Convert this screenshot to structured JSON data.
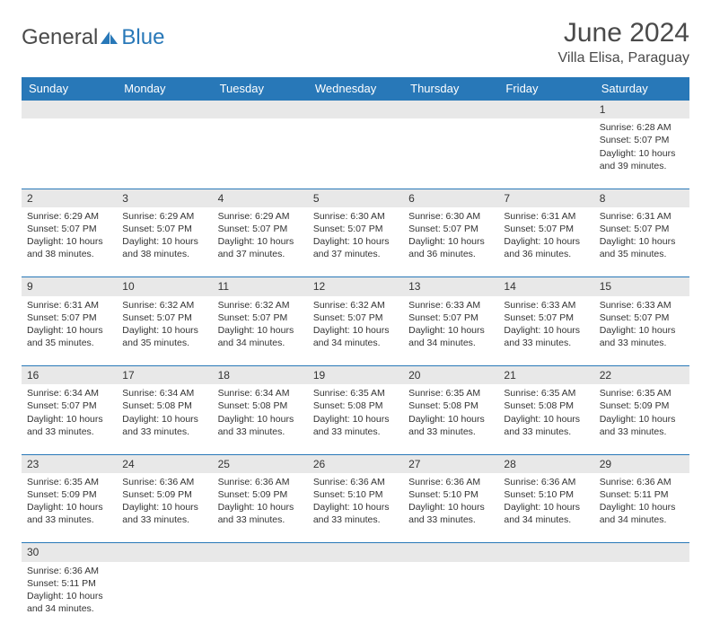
{
  "logo": {
    "text1": "General",
    "text2": "Blue",
    "sail_color": "#2878b8"
  },
  "title": "June 2024",
  "location": "Villa Elisa, Paraguay",
  "colors": {
    "header_bg": "#2878b8",
    "header_text": "#ffffff",
    "daynum_bg": "#e8e8e8",
    "text": "#333333",
    "border": "#2878b8"
  },
  "weekdays": [
    "Sunday",
    "Monday",
    "Tuesday",
    "Wednesday",
    "Thursday",
    "Friday",
    "Saturday"
  ],
  "first_weekday_index": 6,
  "days": [
    {
      "n": 1,
      "sunrise": "6:28 AM",
      "sunset": "5:07 PM",
      "daylight": "10 hours and 39 minutes."
    },
    {
      "n": 2,
      "sunrise": "6:29 AM",
      "sunset": "5:07 PM",
      "daylight": "10 hours and 38 minutes."
    },
    {
      "n": 3,
      "sunrise": "6:29 AM",
      "sunset": "5:07 PM",
      "daylight": "10 hours and 38 minutes."
    },
    {
      "n": 4,
      "sunrise": "6:29 AM",
      "sunset": "5:07 PM",
      "daylight": "10 hours and 37 minutes."
    },
    {
      "n": 5,
      "sunrise": "6:30 AM",
      "sunset": "5:07 PM",
      "daylight": "10 hours and 37 minutes."
    },
    {
      "n": 6,
      "sunrise": "6:30 AM",
      "sunset": "5:07 PM",
      "daylight": "10 hours and 36 minutes."
    },
    {
      "n": 7,
      "sunrise": "6:31 AM",
      "sunset": "5:07 PM",
      "daylight": "10 hours and 36 minutes."
    },
    {
      "n": 8,
      "sunrise": "6:31 AM",
      "sunset": "5:07 PM",
      "daylight": "10 hours and 35 minutes."
    },
    {
      "n": 9,
      "sunrise": "6:31 AM",
      "sunset": "5:07 PM",
      "daylight": "10 hours and 35 minutes."
    },
    {
      "n": 10,
      "sunrise": "6:32 AM",
      "sunset": "5:07 PM",
      "daylight": "10 hours and 35 minutes."
    },
    {
      "n": 11,
      "sunrise": "6:32 AM",
      "sunset": "5:07 PM",
      "daylight": "10 hours and 34 minutes."
    },
    {
      "n": 12,
      "sunrise": "6:32 AM",
      "sunset": "5:07 PM",
      "daylight": "10 hours and 34 minutes."
    },
    {
      "n": 13,
      "sunrise": "6:33 AM",
      "sunset": "5:07 PM",
      "daylight": "10 hours and 34 minutes."
    },
    {
      "n": 14,
      "sunrise": "6:33 AM",
      "sunset": "5:07 PM",
      "daylight": "10 hours and 33 minutes."
    },
    {
      "n": 15,
      "sunrise": "6:33 AM",
      "sunset": "5:07 PM",
      "daylight": "10 hours and 33 minutes."
    },
    {
      "n": 16,
      "sunrise": "6:34 AM",
      "sunset": "5:07 PM",
      "daylight": "10 hours and 33 minutes."
    },
    {
      "n": 17,
      "sunrise": "6:34 AM",
      "sunset": "5:08 PM",
      "daylight": "10 hours and 33 minutes."
    },
    {
      "n": 18,
      "sunrise": "6:34 AM",
      "sunset": "5:08 PM",
      "daylight": "10 hours and 33 minutes."
    },
    {
      "n": 19,
      "sunrise": "6:35 AM",
      "sunset": "5:08 PM",
      "daylight": "10 hours and 33 minutes."
    },
    {
      "n": 20,
      "sunrise": "6:35 AM",
      "sunset": "5:08 PM",
      "daylight": "10 hours and 33 minutes."
    },
    {
      "n": 21,
      "sunrise": "6:35 AM",
      "sunset": "5:08 PM",
      "daylight": "10 hours and 33 minutes."
    },
    {
      "n": 22,
      "sunrise": "6:35 AM",
      "sunset": "5:09 PM",
      "daylight": "10 hours and 33 minutes."
    },
    {
      "n": 23,
      "sunrise": "6:35 AM",
      "sunset": "5:09 PM",
      "daylight": "10 hours and 33 minutes."
    },
    {
      "n": 24,
      "sunrise": "6:36 AM",
      "sunset": "5:09 PM",
      "daylight": "10 hours and 33 minutes."
    },
    {
      "n": 25,
      "sunrise": "6:36 AM",
      "sunset": "5:09 PM",
      "daylight": "10 hours and 33 minutes."
    },
    {
      "n": 26,
      "sunrise": "6:36 AM",
      "sunset": "5:10 PM",
      "daylight": "10 hours and 33 minutes."
    },
    {
      "n": 27,
      "sunrise": "6:36 AM",
      "sunset": "5:10 PM",
      "daylight": "10 hours and 33 minutes."
    },
    {
      "n": 28,
      "sunrise": "6:36 AM",
      "sunset": "5:10 PM",
      "daylight": "10 hours and 34 minutes."
    },
    {
      "n": 29,
      "sunrise": "6:36 AM",
      "sunset": "5:11 PM",
      "daylight": "10 hours and 34 minutes."
    },
    {
      "n": 30,
      "sunrise": "6:36 AM",
      "sunset": "5:11 PM",
      "daylight": "10 hours and 34 minutes."
    }
  ],
  "labels": {
    "sunrise": "Sunrise:",
    "sunset": "Sunset:",
    "daylight": "Daylight:"
  }
}
